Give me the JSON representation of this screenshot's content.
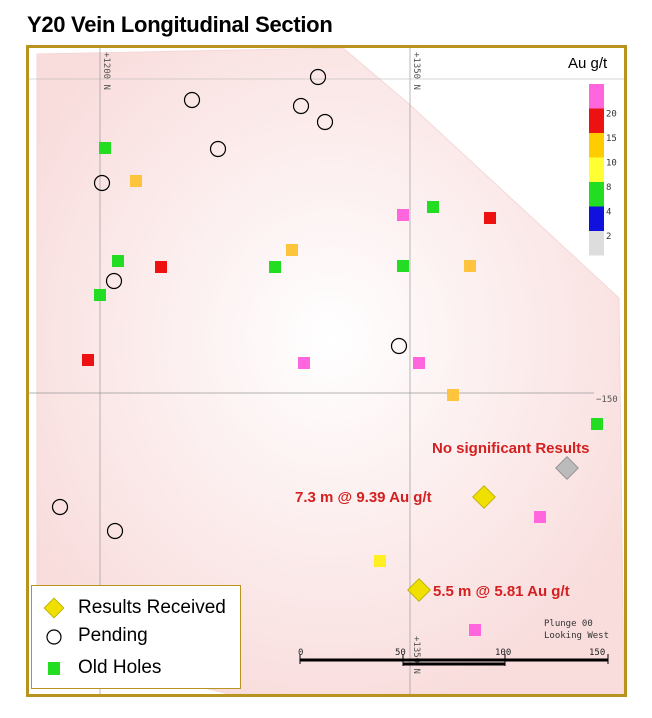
{
  "title": "Y20 Vein Longitudinal Section",
  "colorbar": {
    "title": "Au g/t",
    "bands": [
      {
        "label": "",
        "color": "#ff66dd"
      },
      {
        "label": "20",
        "color": "#ee1111"
      },
      {
        "label": "15",
        "color": "#ffcc00"
      },
      {
        "label": "10",
        "color": "#ffff33"
      },
      {
        "label": "8",
        "color": "#22dd22"
      },
      {
        "label": "4",
        "color": "#1111dd"
      },
      {
        "label": "2",
        "color": "#dddddd"
      }
    ]
  },
  "grid_labels": {
    "left_vertical": "+1200 N",
    "right_vertical": "+1350 N",
    "bottom_vertical": "+1350 N",
    "horizontal": "−150"
  },
  "annotations": {
    "no_significant": "No significant  Results",
    "intercept_1": "7.3 m @ 9.39 Au g/t",
    "intercept_2": "5.5 m @ 5.81 Au g/t"
  },
  "plunge": {
    "line1": "Plunge 00",
    "line2": "Looking West"
  },
  "scale": {
    "labels": [
      "0",
      "50",
      "100",
      "150"
    ]
  },
  "legend": {
    "results_received": "Results Received",
    "pending": "Pending",
    "old_holes": "Old Holes"
  },
  "colors": {
    "frame": "#b8941f",
    "result_marker": "#f0e000",
    "no_result_marker": "#bbbbbb",
    "annotation": "#d42020",
    "section_fill": "#fbe6e6"
  }
}
